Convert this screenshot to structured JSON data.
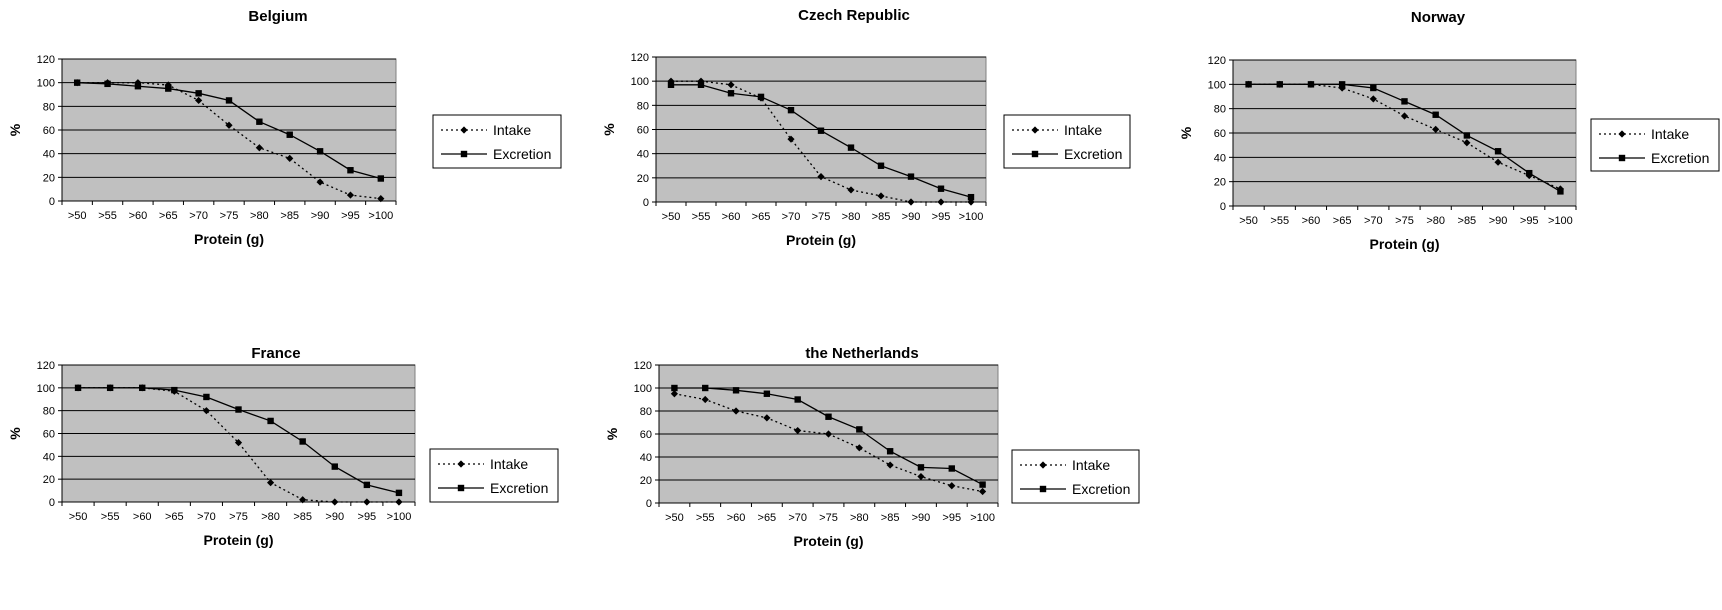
{
  "chart_data": [
    {
      "type": "line",
      "title": "Belgium",
      "xlabel": "Protein (g)",
      "ylabel": "%",
      "ylim": [
        0,
        120
      ],
      "yticks": [
        0,
        20,
        40,
        60,
        80,
        100,
        120
      ],
      "grid": true,
      "legend_position": "right",
      "categories": [
        ">50",
        ">55",
        ">60",
        ">65",
        ">70",
        ">75",
        ">80",
        ">85",
        ">90",
        ">95",
        ">100"
      ],
      "series": [
        {
          "name": "Intake",
          "style": "dotted",
          "marker": "diamond",
          "values": [
            100,
            100,
            100,
            98,
            85,
            64,
            45,
            36,
            16,
            5,
            2
          ]
        },
        {
          "name": "Excretion",
          "style": "solid",
          "marker": "square",
          "values": [
            100,
            99,
            97,
            95,
            91,
            85,
            67,
            56,
            42,
            26,
            19
          ]
        }
      ]
    },
    {
      "type": "line",
      "title": "Czech Republic",
      "xlabel": "Protein (g)",
      "ylabel": "%",
      "ylim": [
        0,
        120
      ],
      "yticks": [
        0,
        20,
        40,
        60,
        80,
        100,
        120
      ],
      "grid": true,
      "legend_position": "right",
      "categories": [
        ">50",
        ">55",
        ">60",
        ">65",
        ">70",
        ">75",
        ">80",
        ">85",
        ">90",
        ">95",
        ">100"
      ],
      "series": [
        {
          "name": "Intake",
          "style": "dotted",
          "marker": "diamond",
          "values": [
            100,
            100,
            97,
            86,
            52,
            21,
            10,
            5,
            0,
            0,
            0
          ]
        },
        {
          "name": "Excretion",
          "style": "solid",
          "marker": "square",
          "values": [
            97,
            97,
            90,
            87,
            76,
            59,
            45,
            30,
            21,
            11,
            4
          ]
        }
      ]
    },
    {
      "type": "line",
      "title": "Norway",
      "xlabel": "Protein (g)",
      "ylabel": "%",
      "ylim": [
        0,
        120
      ],
      "yticks": [
        0,
        20,
        40,
        60,
        80,
        100,
        120
      ],
      "grid": true,
      "legend_position": "right",
      "categories": [
        ">50",
        ">55",
        ">60",
        ">65",
        ">70",
        ">75",
        ">80",
        ">85",
        ">90",
        ">95",
        ">100"
      ],
      "series": [
        {
          "name": "Intake",
          "style": "dotted",
          "marker": "diamond",
          "values": [
            100,
            100,
            100,
            97,
            88,
            74,
            63,
            52,
            36,
            25,
            14
          ]
        },
        {
          "name": "Excretion",
          "style": "solid",
          "marker": "square",
          "values": [
            100,
            100,
            100,
            100,
            97,
            86,
            75,
            58,
            45,
            27,
            12
          ]
        }
      ]
    },
    {
      "type": "line",
      "title": "France",
      "xlabel": "Protein (g)",
      "ylabel": "%",
      "ylim": [
        0,
        120
      ],
      "yticks": [
        0,
        20,
        40,
        60,
        80,
        100,
        120
      ],
      "grid": true,
      "legend_position": "right",
      "categories": [
        ">50",
        ">55",
        ">60",
        ">65",
        ">70",
        ">75",
        ">80",
        ">85",
        ">90",
        ">95",
        ">100"
      ],
      "series": [
        {
          "name": "Intake",
          "style": "dotted",
          "marker": "diamond",
          "values": [
            100,
            100,
            100,
            97,
            80,
            52,
            17,
            2,
            0,
            0,
            0
          ]
        },
        {
          "name": "Excretion",
          "style": "solid",
          "marker": "square",
          "values": [
            100,
            100,
            100,
            98,
            92,
            81,
            71,
            53,
            31,
            15,
            8
          ]
        }
      ]
    },
    {
      "type": "line",
      "title": "the Netherlands",
      "xlabel": "Protein (g)",
      "ylabel": "%",
      "ylim": [
        0,
        120
      ],
      "yticks": [
        0,
        20,
        40,
        60,
        80,
        100,
        120
      ],
      "grid": true,
      "legend_position": "right",
      "categories": [
        ">50",
        ">55",
        ">60",
        ">65",
        ">70",
        ">75",
        ">80",
        ">85",
        ">90",
        ">95",
        ">100"
      ],
      "series": [
        {
          "name": "Intake",
          "style": "dotted",
          "marker": "diamond",
          "values": [
            95,
            90,
            80,
            74,
            63,
            60,
            48,
            33,
            23,
            15,
            10
          ]
        },
        {
          "name": "Excretion",
          "style": "solid",
          "marker": "square",
          "values": [
            100,
            100,
            98,
            95,
            90,
            75,
            64,
            45,
            31,
            30,
            16
          ]
        }
      ]
    }
  ],
  "colors": {
    "plot_background": "#c0c0c0",
    "gridline": "#000000",
    "series_line": "#000000"
  }
}
